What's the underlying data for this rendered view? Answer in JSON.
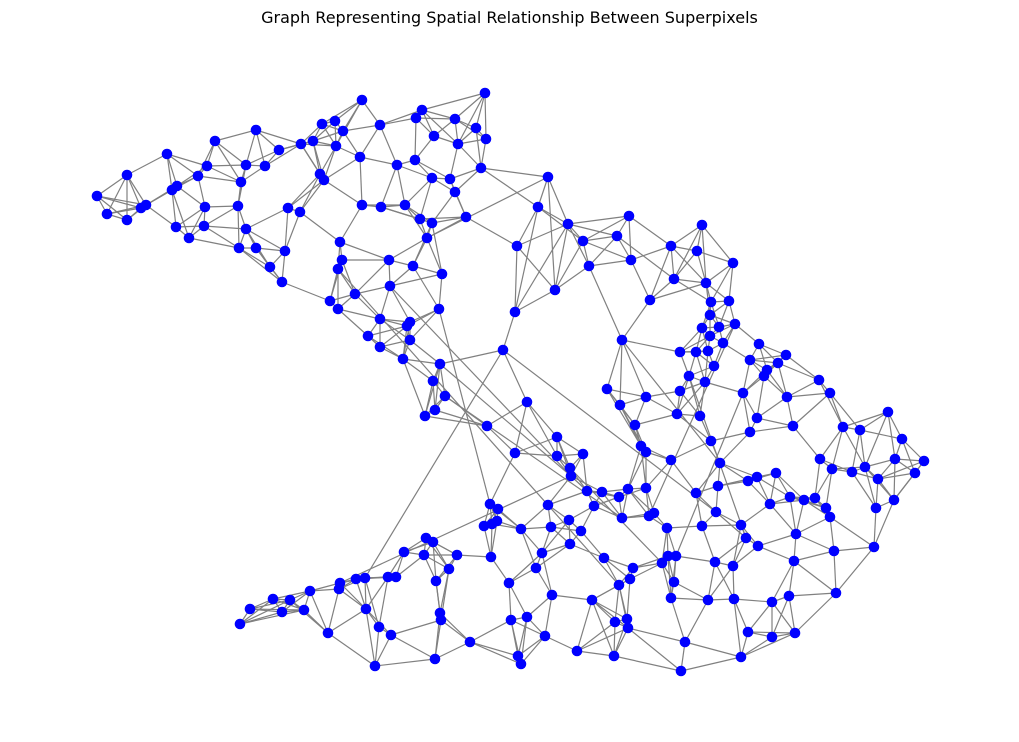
{
  "title": "Graph Representing Spatial Relationship Between Superpixels",
  "colors": {
    "node": "#0000ff",
    "edge": "#808080",
    "background": "#ffffff"
  },
  "graph": {
    "node_count_estimate": 220,
    "edge_style": "gray straight lines",
    "node_style": "filled blue circles"
  }
}
